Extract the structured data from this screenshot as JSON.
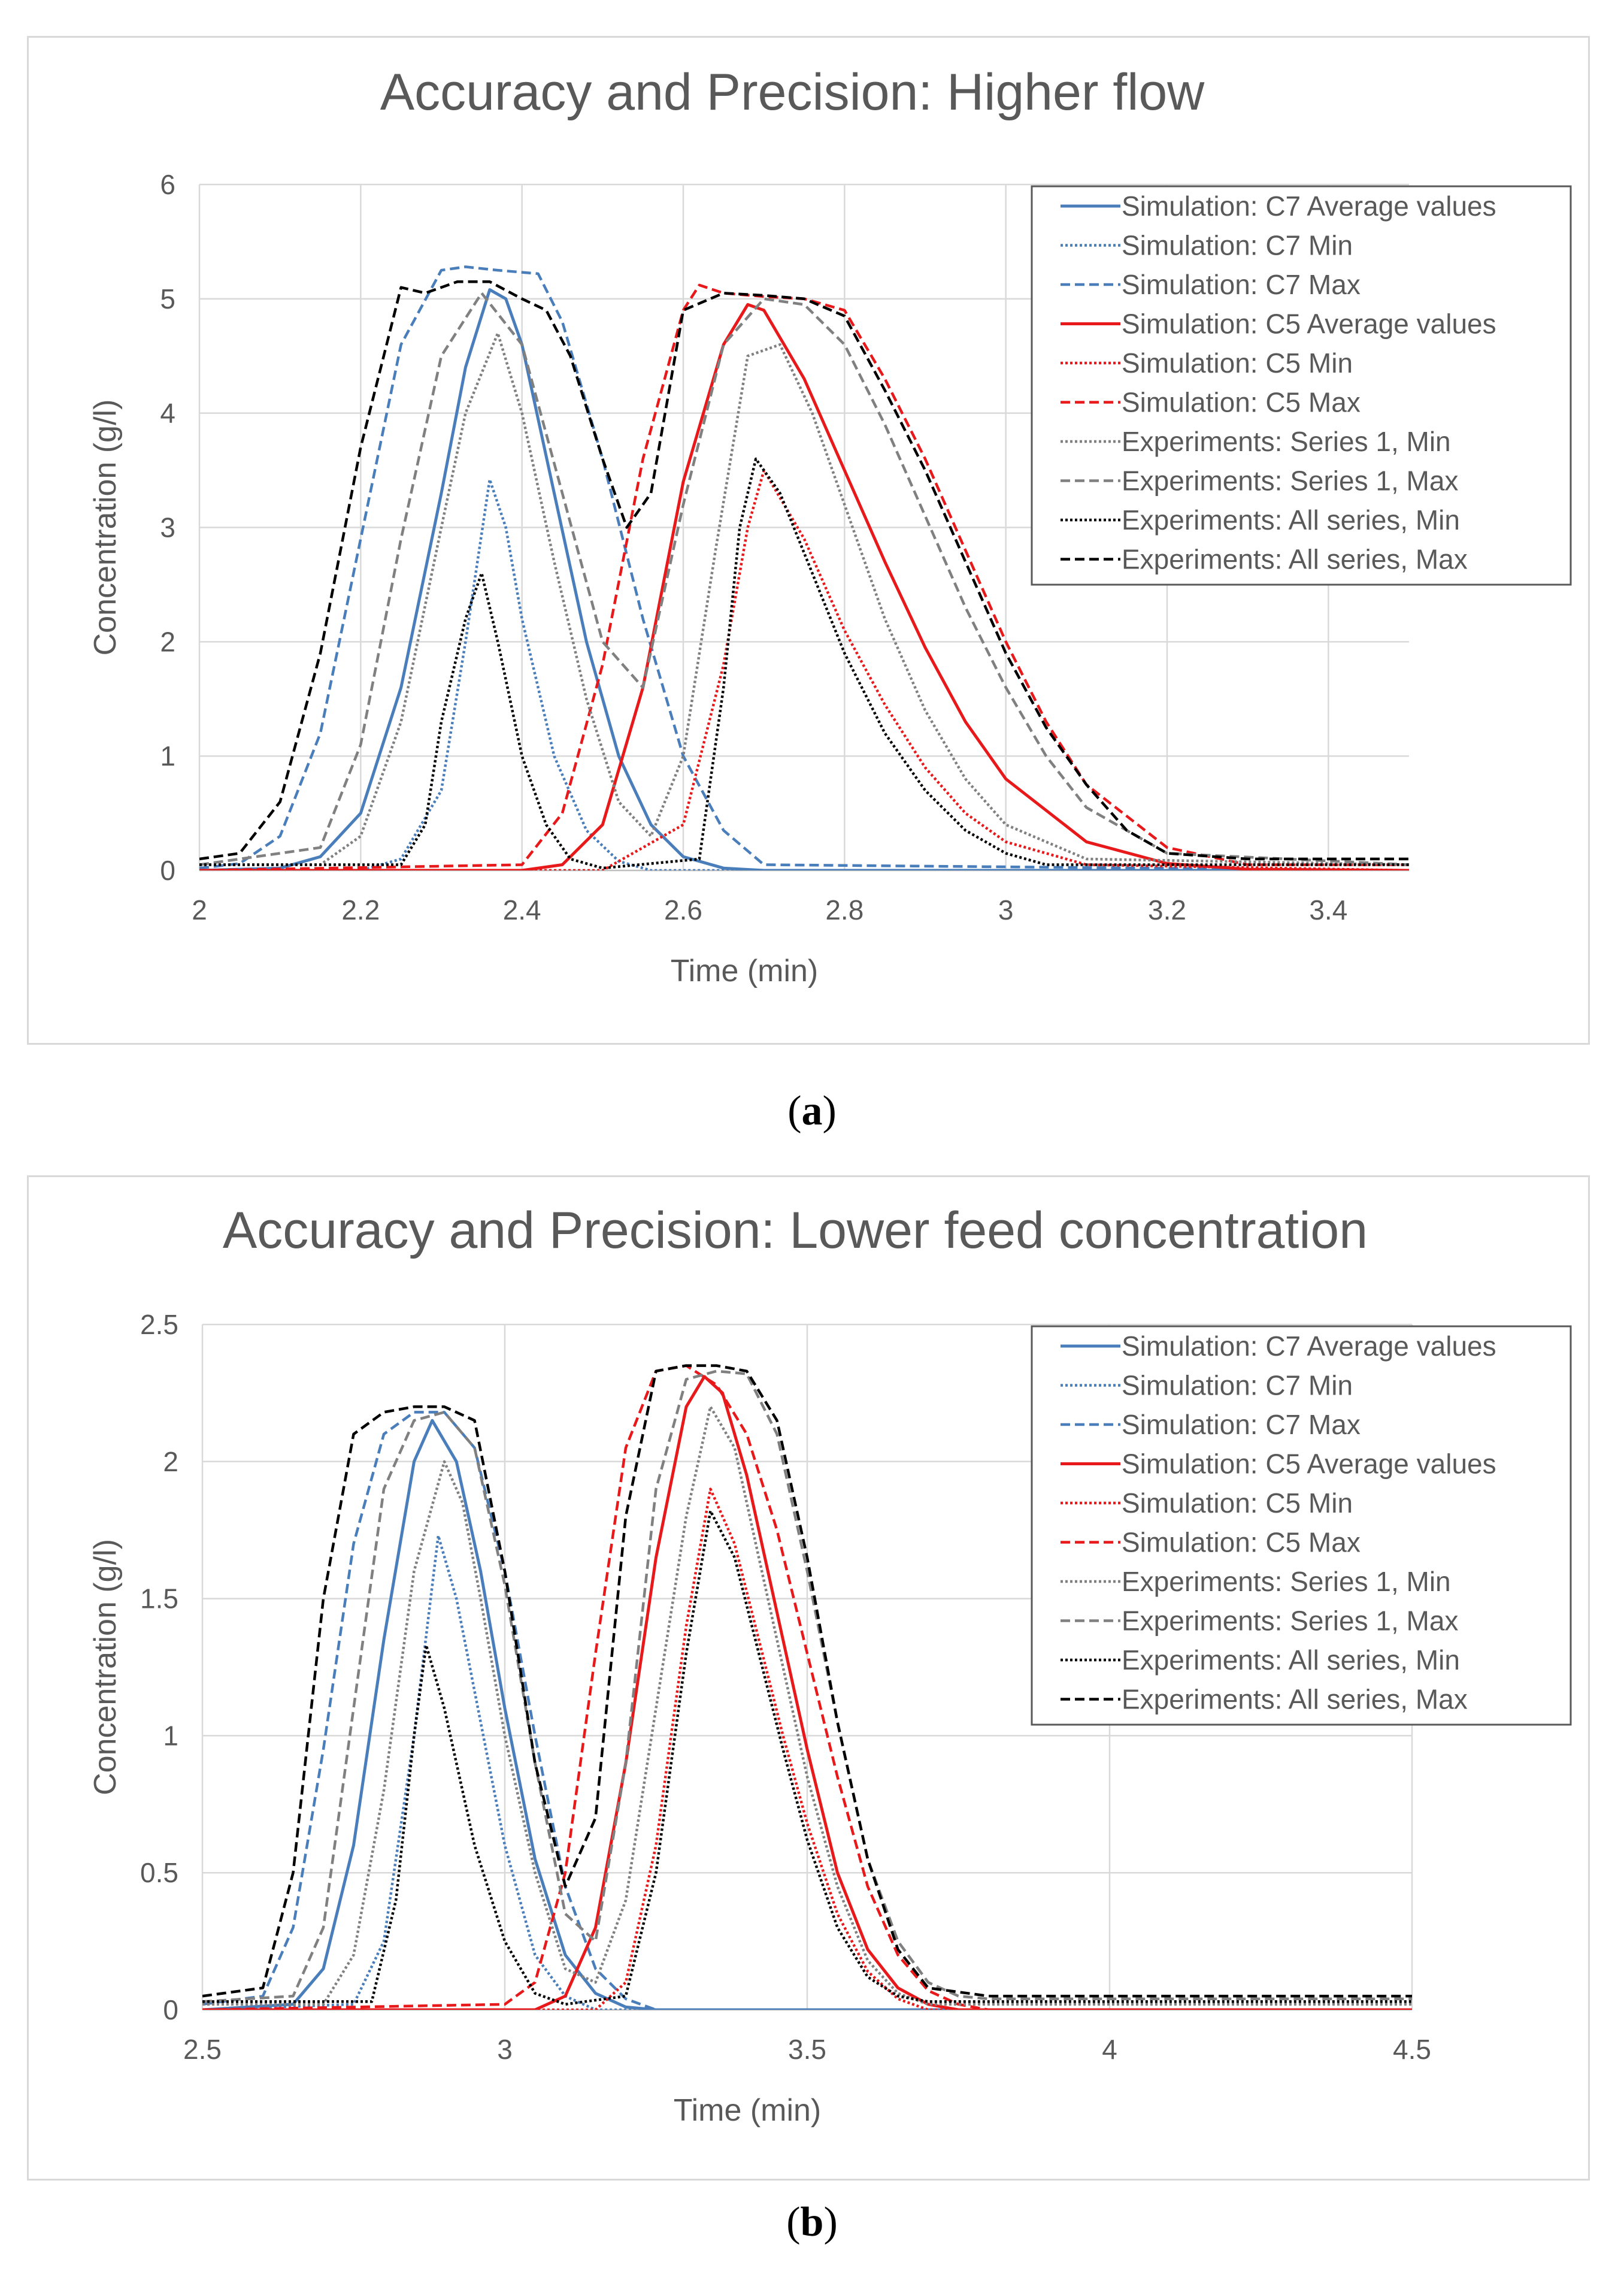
{
  "colors": {
    "c7": "#4a7ebb",
    "c5": "#e8191b",
    "exp_series1": "#808080",
    "exp_all": "#000000",
    "grid": "#d9d9d9",
    "axis_text": "#595959",
    "title_text": "#595959"
  },
  "legend_labels": [
    "Simulation: C7 Average values",
    "Simulation: C7 Min",
    "Simulation: C7 Max",
    "Simulation: C5 Average values",
    "Simulation: C5 Min",
    "Simulation: C5 Max",
    "Experiments: Series 1, Min",
    "Experiments: Series 1, Max",
    "Experiments: All series, Min",
    "Experiments: All series, Max"
  ],
  "captions": {
    "a": "a",
    "b": "b"
  },
  "chart_data": [
    {
      "id": "a",
      "type": "line",
      "title": "Accuracy and Precision: Higher flow",
      "xlabel": "Time  (min)",
      "ylabel": "Concentration (g/l)",
      "xlim": [
        2,
        3.5
      ],
      "ylim": [
        0,
        6
      ],
      "xticks": [
        2,
        2.2,
        2.4,
        2.6,
        2.8,
        3,
        3.2,
        3.4
      ],
      "xtick_labels": [
        "2",
        "2.2",
        "2.4",
        "2.6",
        "2.8",
        "3",
        "3.2",
        "3.4"
      ],
      "yticks": [
        0,
        1,
        2,
        3,
        4,
        5,
        6
      ],
      "ytick_labels": [
        "0",
        "1",
        "2",
        "3",
        "4",
        "5",
        "6"
      ],
      "grid": true,
      "legend_position": "top-right",
      "series": [
        {
          "name": "Simulation: C7 Average values",
          "color": "#4a7ebb",
          "dash": "solid",
          "x": [
            2.0,
            2.1,
            2.15,
            2.2,
            2.25,
            2.3,
            2.33,
            2.36,
            2.38,
            2.4,
            2.44,
            2.48,
            2.52,
            2.56,
            2.6,
            2.65,
            2.7,
            3.5
          ],
          "y": [
            0.0,
            0.02,
            0.12,
            0.5,
            1.6,
            3.3,
            4.4,
            5.08,
            5.0,
            4.6,
            3.3,
            2.0,
            1.0,
            0.4,
            0.12,
            0.02,
            0.0,
            0.0
          ]
        },
        {
          "name": "Simulation: C7 Min",
          "color": "#4a7ebb",
          "dash": "dot",
          "x": [
            2.0,
            2.2,
            2.25,
            2.3,
            2.33,
            2.36,
            2.38,
            2.4,
            2.44,
            2.48,
            2.52,
            2.56,
            3.5
          ],
          "y": [
            0.0,
            0.0,
            0.1,
            0.7,
            2.0,
            3.42,
            3.0,
            2.2,
            1.0,
            0.35,
            0.08,
            0.0,
            0.0
          ]
        },
        {
          "name": "Simulation: C7 Max",
          "color": "#4a7ebb",
          "dash": "dash",
          "x": [
            2.0,
            2.05,
            2.1,
            2.15,
            2.2,
            2.25,
            2.3,
            2.33,
            2.37,
            2.42,
            2.45,
            2.5,
            2.55,
            2.6,
            2.65,
            2.7,
            3.5
          ],
          "y": [
            0.02,
            0.06,
            0.3,
            1.2,
            2.9,
            4.6,
            5.25,
            5.28,
            5.25,
            5.22,
            4.8,
            3.6,
            2.2,
            1.0,
            0.35,
            0.05,
            0.0
          ]
        },
        {
          "name": "Simulation: C5 Average values",
          "color": "#e8191b",
          "dash": "solid",
          "x": [
            2.0,
            2.4,
            2.45,
            2.5,
            2.55,
            2.6,
            2.65,
            2.68,
            2.7,
            2.75,
            2.8,
            2.85,
            2.9,
            2.95,
            3.0,
            3.1,
            3.2,
            3.3,
            3.5
          ],
          "y": [
            0.0,
            0.0,
            0.05,
            0.4,
            1.6,
            3.4,
            4.6,
            4.95,
            4.9,
            4.3,
            3.5,
            2.7,
            1.95,
            1.3,
            0.8,
            0.25,
            0.06,
            0.01,
            0.0
          ]
        },
        {
          "name": "Simulation: C5 Min",
          "color": "#e8191b",
          "dash": "dot",
          "x": [
            2.0,
            2.5,
            2.6,
            2.65,
            2.68,
            2.7,
            2.75,
            2.8,
            2.85,
            2.9,
            2.95,
            3.0,
            3.1,
            3.5
          ],
          "y": [
            0.0,
            0.0,
            0.4,
            1.8,
            3.0,
            3.5,
            2.9,
            2.1,
            1.45,
            0.9,
            0.5,
            0.25,
            0.05,
            0.0
          ]
        },
        {
          "name": "Simulation: C5 Max",
          "color": "#e8191b",
          "dash": "dash",
          "x": [
            2.0,
            2.4,
            2.45,
            2.5,
            2.55,
            2.6,
            2.62,
            2.65,
            2.7,
            2.75,
            2.8,
            2.85,
            2.9,
            2.95,
            3.0,
            3.05,
            3.1,
            3.2,
            3.3,
            3.5
          ],
          "y": [
            0.0,
            0.05,
            0.5,
            1.8,
            3.6,
            4.9,
            5.12,
            5.05,
            5.02,
            5.0,
            4.9,
            4.3,
            3.6,
            2.8,
            2.0,
            1.3,
            0.75,
            0.2,
            0.05,
            0.05
          ]
        },
        {
          "name": "Experiments: Series 1, Min",
          "color": "#808080",
          "dash": "dot",
          "x": [
            2.0,
            2.15,
            2.2,
            2.25,
            2.3,
            2.33,
            2.37,
            2.4,
            2.44,
            2.48,
            2.52,
            2.56,
            2.6,
            2.64,
            2.68,
            2.72,
            2.76,
            2.8,
            2.85,
            2.9,
            2.95,
            3.0,
            3.1,
            3.5
          ],
          "y": [
            0.05,
            0.05,
            0.3,
            1.3,
            3.0,
            4.0,
            4.7,
            4.0,
            2.7,
            1.5,
            0.6,
            0.3,
            1.0,
            2.8,
            4.5,
            4.6,
            4.0,
            3.2,
            2.2,
            1.4,
            0.8,
            0.4,
            0.1,
            0.05
          ]
        },
        {
          "name": "Experiments: Series 1, Max",
          "color": "#808080",
          "dash": "dash",
          "x": [
            2.0,
            2.15,
            2.2,
            2.25,
            2.3,
            2.35,
            2.4,
            2.45,
            2.5,
            2.55,
            2.6,
            2.65,
            2.7,
            2.75,
            2.8,
            2.85,
            2.9,
            2.95,
            3.0,
            3.05,
            3.1,
            3.2,
            3.5
          ],
          "y": [
            0.05,
            0.2,
            1.1,
            2.9,
            4.5,
            5.05,
            4.6,
            3.3,
            2.0,
            1.6,
            3.2,
            4.6,
            5.0,
            4.95,
            4.6,
            3.9,
            3.1,
            2.3,
            1.6,
            1.0,
            0.55,
            0.15,
            0.05
          ]
        },
        {
          "name": "Experiments: All series, Min",
          "color": "#000000",
          "dash": "dot",
          "x": [
            2.0,
            2.25,
            2.28,
            2.3,
            2.33,
            2.35,
            2.37,
            2.4,
            2.43,
            2.46,
            2.5,
            2.62,
            2.65,
            2.67,
            2.69,
            2.72,
            2.76,
            2.8,
            2.85,
            2.9,
            2.95,
            3.0,
            3.05,
            3.5
          ],
          "y": [
            0.05,
            0.05,
            0.4,
            1.3,
            2.2,
            2.6,
            2.0,
            1.0,
            0.4,
            0.1,
            0.02,
            0.1,
            1.6,
            3.0,
            3.6,
            3.3,
            2.6,
            1.9,
            1.2,
            0.7,
            0.35,
            0.15,
            0.05,
            0.05
          ]
        },
        {
          "name": "Experiments: All series, Max",
          "color": "#000000",
          "dash": "dash",
          "x": [
            2.0,
            2.05,
            2.1,
            2.15,
            2.2,
            2.25,
            2.28,
            2.32,
            2.36,
            2.4,
            2.43,
            2.46,
            2.5,
            2.53,
            2.56,
            2.6,
            2.65,
            2.7,
            2.75,
            2.8,
            2.85,
            2.9,
            2.95,
            3.0,
            3.05,
            3.1,
            3.15,
            3.2,
            3.3,
            3.5
          ],
          "y": [
            0.1,
            0.15,
            0.6,
            1.9,
            3.7,
            5.1,
            5.05,
            5.15,
            5.15,
            5.0,
            4.9,
            4.5,
            3.6,
            3.0,
            3.3,
            4.9,
            5.05,
            5.03,
            5.0,
            4.85,
            4.2,
            3.5,
            2.7,
            1.9,
            1.25,
            0.75,
            0.35,
            0.15,
            0.1,
            0.1
          ]
        }
      ]
    },
    {
      "id": "b",
      "type": "line",
      "title": "Accuracy and Precision: Lower feed concentration",
      "xlabel": "Time  (min)",
      "ylabel": "Concentration (g/l)",
      "xlim": [
        2.5,
        4.5
      ],
      "ylim": [
        0,
        2.5
      ],
      "xticks": [
        2.5,
        3,
        3.5,
        4,
        4.5
      ],
      "xtick_labels": [
        "2.5",
        "3",
        "3.5",
        "4",
        "4.5"
      ],
      "yticks": [
        0,
        0.5,
        1,
        1.5,
        2,
        2.5
      ],
      "ytick_labels": [
        "0",
        "0.5",
        "1",
        "1.5",
        "2",
        "2.5"
      ],
      "grid": true,
      "legend_position": "top-right",
      "series": [
        {
          "name": "Simulation: C7 Average values",
          "color": "#4a7ebb",
          "dash": "solid",
          "x": [
            2.5,
            2.65,
            2.7,
            2.75,
            2.8,
            2.85,
            2.88,
            2.92,
            2.96,
            3.0,
            3.05,
            3.1,
            3.15,
            3.2,
            3.25,
            4.5
          ],
          "y": [
            0.0,
            0.02,
            0.15,
            0.6,
            1.35,
            2.0,
            2.15,
            2.0,
            1.6,
            1.1,
            0.55,
            0.2,
            0.06,
            0.01,
            0.0,
            0.0
          ]
        },
        {
          "name": "Simulation: C7 Min",
          "color": "#4a7ebb",
          "dash": "dot",
          "x": [
            2.5,
            2.75,
            2.8,
            2.85,
            2.89,
            2.92,
            2.96,
            3.0,
            3.05,
            3.1,
            3.15,
            4.5
          ],
          "y": [
            0.0,
            0.02,
            0.25,
            1.0,
            1.73,
            1.5,
            1.05,
            0.6,
            0.2,
            0.05,
            0.0,
            0.0
          ]
        },
        {
          "name": "Simulation: C7 Max",
          "color": "#4a7ebb",
          "dash": "dash",
          "x": [
            2.5,
            2.6,
            2.65,
            2.7,
            2.75,
            2.8,
            2.85,
            2.9,
            2.95,
            3.0,
            3.05,
            3.1,
            3.15,
            3.2,
            3.25,
            4.5
          ],
          "y": [
            0.02,
            0.05,
            0.3,
            0.95,
            1.7,
            2.1,
            2.18,
            2.18,
            2.05,
            1.6,
            1.0,
            0.45,
            0.15,
            0.04,
            0.0,
            0.0
          ]
        },
        {
          "name": "Simulation: C5 Average values",
          "color": "#e8191b",
          "dash": "solid",
          "x": [
            2.5,
            3.05,
            3.1,
            3.15,
            3.2,
            3.25,
            3.3,
            3.33,
            3.36,
            3.4,
            3.45,
            3.5,
            3.55,
            3.6,
            3.65,
            3.7,
            3.75,
            4.5
          ],
          "y": [
            0.0,
            0.0,
            0.05,
            0.3,
            0.9,
            1.65,
            2.2,
            2.31,
            2.25,
            1.95,
            1.45,
            0.95,
            0.5,
            0.22,
            0.08,
            0.02,
            0.0,
            0.0
          ]
        },
        {
          "name": "Simulation: C5 Min",
          "color": "#e8191b",
          "dash": "dot",
          "x": [
            2.5,
            3.15,
            3.2,
            3.25,
            3.3,
            3.34,
            3.38,
            3.42,
            3.46,
            3.5,
            3.55,
            3.6,
            3.65,
            3.7,
            4.5
          ],
          "y": [
            0.0,
            0.0,
            0.1,
            0.6,
            1.4,
            1.9,
            1.7,
            1.35,
            1.0,
            0.68,
            0.35,
            0.14,
            0.04,
            0.0,
            0.0
          ]
        },
        {
          "name": "Simulation: C5 Max",
          "color": "#e8191b",
          "dash": "dash",
          "x": [
            2.5,
            3.0,
            3.05,
            3.1,
            3.15,
            3.2,
            3.25,
            3.3,
            3.35,
            3.4,
            3.45,
            3.5,
            3.55,
            3.6,
            3.65,
            3.7,
            3.75,
            3.8,
            4.5
          ],
          "y": [
            0.0,
            0.02,
            0.1,
            0.5,
            1.3,
            2.05,
            2.33,
            2.35,
            2.28,
            2.1,
            1.75,
            1.3,
            0.85,
            0.45,
            0.2,
            0.07,
            0.02,
            0.0,
            0.0
          ]
        },
        {
          "name": "Experiments: Series 1, Min",
          "color": "#808080",
          "dash": "dot",
          "x": [
            2.5,
            2.7,
            2.75,
            2.8,
            2.85,
            2.9,
            2.93,
            2.96,
            3.0,
            3.05,
            3.1,
            3.15,
            3.2,
            3.25,
            3.3,
            3.34,
            3.38,
            3.42,
            3.46,
            3.5,
            3.55,
            3.6,
            3.65,
            3.7,
            3.8,
            4.5
          ],
          "y": [
            0.02,
            0.02,
            0.2,
            0.8,
            1.6,
            2.0,
            1.85,
            1.5,
            1.0,
            0.5,
            0.15,
            0.1,
            0.4,
            1.1,
            1.8,
            2.2,
            2.05,
            1.65,
            1.25,
            0.85,
            0.45,
            0.18,
            0.06,
            0.02,
            0.02,
            0.02
          ]
        },
        {
          "name": "Experiments: Series 1, Max",
          "color": "#808080",
          "dash": "dash",
          "x": [
            2.5,
            2.65,
            2.7,
            2.75,
            2.8,
            2.85,
            2.9,
            2.95,
            3.0,
            3.05,
            3.1,
            3.15,
            3.2,
            3.25,
            3.3,
            3.35,
            3.4,
            3.45,
            3.5,
            3.55,
            3.6,
            3.65,
            3.7,
            3.75,
            3.8,
            4.5
          ],
          "y": [
            0.03,
            0.05,
            0.3,
            1.1,
            1.9,
            2.15,
            2.18,
            2.05,
            1.55,
            0.9,
            0.35,
            0.25,
            0.9,
            1.9,
            2.3,
            2.33,
            2.32,
            2.1,
            1.6,
            1.05,
            0.55,
            0.25,
            0.1,
            0.05,
            0.04,
            0.04
          ]
        },
        {
          "name": "Experiments: All series, Min",
          "color": "#000000",
          "dash": "dot",
          "x": [
            2.5,
            2.78,
            2.82,
            2.85,
            2.87,
            2.9,
            2.95,
            3.0,
            3.05,
            3.1,
            3.2,
            3.25,
            3.3,
            3.34,
            3.38,
            3.42,
            3.46,
            3.5,
            3.55,
            3.6,
            3.65,
            3.7,
            4.5
          ],
          "y": [
            0.03,
            0.03,
            0.4,
            1.0,
            1.33,
            1.1,
            0.6,
            0.25,
            0.06,
            0.02,
            0.05,
            0.5,
            1.3,
            1.82,
            1.65,
            1.3,
            0.95,
            0.62,
            0.3,
            0.12,
            0.05,
            0.03,
            0.03
          ]
        },
        {
          "name": "Experiments: All series, Max",
          "color": "#000000",
          "dash": "dash",
          "x": [
            2.5,
            2.6,
            2.65,
            2.7,
            2.75,
            2.8,
            2.85,
            2.9,
            2.95,
            3.0,
            3.05,
            3.1,
            3.15,
            3.2,
            3.25,
            3.3,
            3.35,
            3.4,
            3.45,
            3.5,
            3.55,
            3.6,
            3.65,
            3.7,
            3.8,
            4.5
          ],
          "y": [
            0.05,
            0.08,
            0.5,
            1.5,
            2.1,
            2.18,
            2.2,
            2.2,
            2.15,
            1.6,
            0.9,
            0.45,
            0.7,
            1.8,
            2.33,
            2.35,
            2.35,
            2.33,
            2.15,
            1.65,
            1.05,
            0.55,
            0.22,
            0.08,
            0.05,
            0.05
          ]
        }
      ]
    }
  ]
}
